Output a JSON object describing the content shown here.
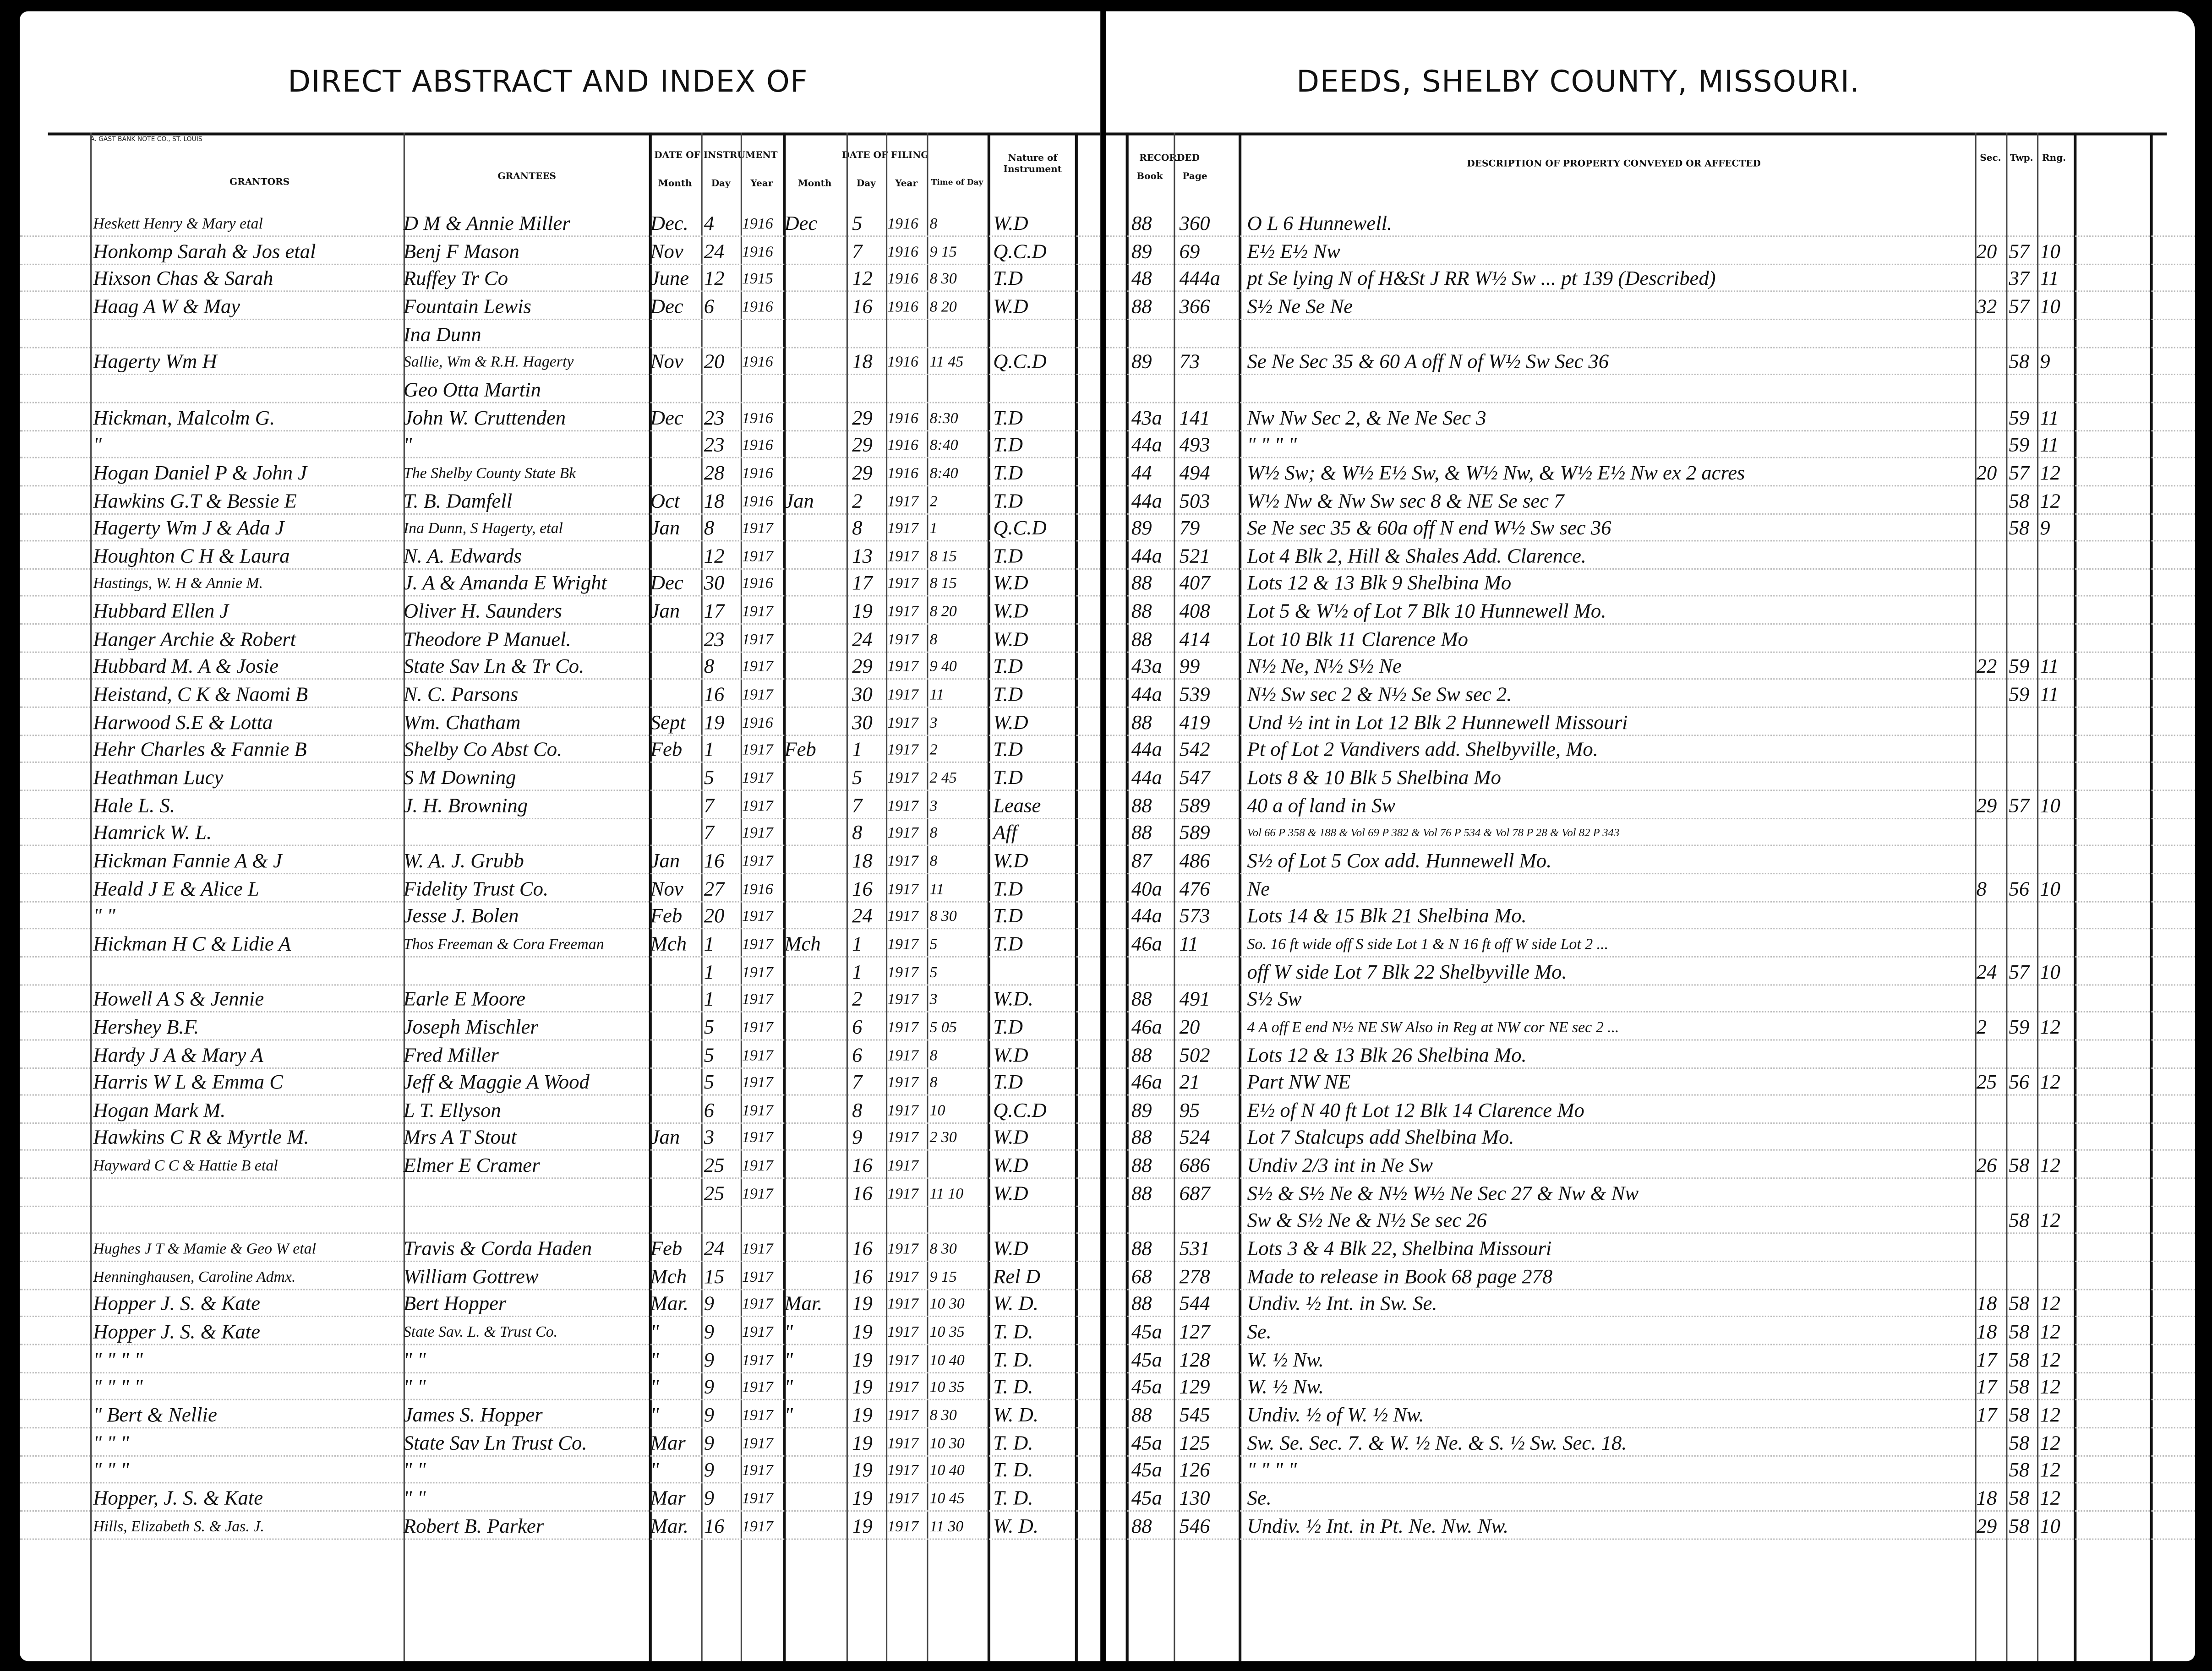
{
  "left_page": {
    "title": "DIRECT ABSTRACT AND INDEX OF",
    "imprint": "A. GAST BANK NOTE CO., ST. LOUIS",
    "headers": {
      "grantors": "GRANTORS",
      "grantees": "GRANTEES",
      "date_of_instrument": "DATE OF INSTRUMENT",
      "date_of_filing": "DATE OF FILING",
      "month": "Month",
      "day": "Day",
      "year": "Year",
      "time_of_day": "Time of Day",
      "nature": "Nature of Instrument"
    }
  },
  "right_page": {
    "title": "DEEDS, SHELBY COUNTY, MISSOURI.",
    "headers": {
      "recorded": "RECORDED",
      "book": "Book",
      "page": "Page",
      "description": "DESCRIPTION OF PROPERTY CONVEYED OR AFFECTED",
      "sec": "Sec.",
      "twp": "Twp.",
      "rng": "Rng."
    }
  },
  "rows": [
    {
      "grantor": "Heskett Henry & Mary etal",
      "grantee": "D M & Annie Miller",
      "im": "Dec.",
      "id": "4",
      "iy": "1916",
      "fm": "Dec",
      "fd": "5",
      "fy": "1916",
      "time": "8",
      "nature": "W.D",
      "book": "88",
      "page": "360",
      "desc": "O L 6 Hunnewell.",
      "sec": "",
      "twp": "",
      "rng": ""
    },
    {
      "grantor": "Honkomp Sarah & Jos etal",
      "grantee": "Benj F Mason",
      "im": "Nov",
      "id": "24",
      "iy": "1916",
      "fm": "",
      "fd": "7",
      "fy": "1916",
      "time": "9 15",
      "nature": "Q.C.D",
      "book": "89",
      "page": "69",
      "desc": "E½ E½ Nw",
      "sec": "20",
      "twp": "57",
      "rng": "10"
    },
    {
      "grantor": "Hixson Chas & Sarah",
      "grantee": "Ruffey Tr Co",
      "im": "June",
      "id": "12",
      "iy": "1915",
      "fm": "",
      "fd": "12",
      "fy": "1916",
      "time": "8 30",
      "nature": "T.D",
      "book": "48",
      "page": "444a",
      "desc": "pt Se lying N of H&St J RR W½ Sw ... pt 139 (Described)",
      "sec": "",
      "twp": "37",
      "rng": "11"
    },
    {
      "grantor": "Haag A W & May",
      "grantee": "Fountain Lewis",
      "im": "Dec",
      "id": "6",
      "iy": "1916",
      "fm": "",
      "fd": "16",
      "fy": "1916",
      "time": "8 20",
      "nature": "W.D",
      "book": "88",
      "page": "366",
      "desc": "S½ Ne Se Ne",
      "sec": "32",
      "twp": "57",
      "rng": "10"
    },
    {
      "grantor": "",
      "grantee": "Ina Dunn",
      "im": "",
      "id": "",
      "iy": "",
      "fm": "",
      "fd": "",
      "fy": "",
      "time": "",
      "nature": "",
      "book": "",
      "page": "",
      "desc": "",
      "sec": "",
      "twp": "",
      "rng": ""
    },
    {
      "grantor": "Hagerty Wm H",
      "grantee": "Sallie, Wm & R.H. Hagerty",
      "im": "Nov",
      "id": "20",
      "iy": "1916",
      "fm": "",
      "fd": "18",
      "fy": "1916",
      "time": "11 45",
      "nature": "Q.C.D",
      "book": "89",
      "page": "73",
      "desc": "Se Ne Sec 35 & 60 A off N of W½ Sw Sec 36",
      "sec": "",
      "twp": "58",
      "rng": "9"
    },
    {
      "grantor": "",
      "grantee": "Geo Otta Martin",
      "im": "",
      "id": "",
      "iy": "",
      "fm": "",
      "fd": "",
      "fy": "",
      "time": "",
      "nature": "",
      "book": "",
      "page": "",
      "desc": "",
      "sec": "",
      "twp": "",
      "rng": ""
    },
    {
      "grantor": "Hickman, Malcolm G.",
      "grantee": "John W. Cruttenden",
      "im": "Dec",
      "id": "23",
      "iy": "1916",
      "fm": "",
      "fd": "29",
      "fy": "1916",
      "time": "8:30",
      "nature": "T.D",
      "book": "43a",
      "page": "141",
      "desc": "Nw Nw Sec 2, & Ne Ne Sec 3",
      "sec": "",
      "twp": "59",
      "rng": "11"
    },
    {
      "grantor": "\"",
      "grantee": "\"",
      "im": "",
      "id": "23",
      "iy": "1916",
      "fm": "",
      "fd": "29",
      "fy": "1916",
      "time": "8:40",
      "nature": "T.D",
      "book": "44a",
      "page": "493",
      "desc": "\" \" \" \"",
      "sec": "",
      "twp": "59",
      "rng": "11"
    },
    {
      "grantor": "Hogan Daniel P & John J",
      "grantee": "The Shelby County State Bk",
      "im": "",
      "id": "28",
      "iy": "1916",
      "fm": "",
      "fd": "29",
      "fy": "1916",
      "time": "8:40",
      "nature": "T.D",
      "book": "44",
      "page": "494",
      "desc": "W½ Sw; & W½ E½ Sw, & W½ Nw, & W½ E½ Nw ex 2 acres",
      "sec": "20",
      "twp": "57",
      "rng": "12"
    },
    {
      "grantor": "Hawkins G.T & Bessie E",
      "grantee": "T. B. Damfell",
      "im": "Oct",
      "id": "18",
      "iy": "1916",
      "fm": "Jan",
      "fd": "2",
      "fy": "1917",
      "time": "2",
      "nature": "T.D",
      "book": "44a",
      "page": "503",
      "desc": "W½ Nw & Nw Sw sec 8 & NE Se sec 7",
      "sec": "",
      "twp": "58",
      "rng": "12"
    },
    {
      "grantor": "Hagerty Wm J & Ada J",
      "grantee": "Ina Dunn, S Hagerty, etal",
      "im": "Jan",
      "id": "8",
      "iy": "1917",
      "fm": "",
      "fd": "8",
      "fy": "1917",
      "time": "1",
      "nature": "Q.C.D",
      "book": "89",
      "page": "79",
      "desc": "Se Ne sec 35 & 60a off N end W½ Sw sec 36",
      "sec": "",
      "twp": "58",
      "rng": "9"
    },
    {
      "grantor": "Houghton C H & Laura",
      "grantee": "N. A. Edwards",
      "im": "",
      "id": "12",
      "iy": "1917",
      "fm": "",
      "fd": "13",
      "fy": "1917",
      "time": "8 15",
      "nature": "T.D",
      "book": "44a",
      "page": "521",
      "desc": "Lot 4 Blk 2, Hill & Shales Add. Clarence.",
      "sec": "",
      "twp": "",
      "rng": ""
    },
    {
      "grantor": "Hastings, W. H & Annie M.",
      "grantee": "J. A & Amanda E Wright",
      "im": "Dec",
      "id": "30",
      "iy": "1916",
      "fm": "",
      "fd": "17",
      "fy": "1917",
      "time": "8 15",
      "nature": "W.D",
      "book": "88",
      "page": "407",
      "desc": "Lots 12 & 13 Blk 9 Shelbina Mo",
      "sec": "",
      "twp": "",
      "rng": ""
    },
    {
      "grantor": "Hubbard Ellen J",
      "grantee": "Oliver H. Saunders",
      "im": "Jan",
      "id": "17",
      "iy": "1917",
      "fm": "",
      "fd": "19",
      "fy": "1917",
      "time": "8 20",
      "nature": "W.D",
      "book": "88",
      "page": "408",
      "desc": "Lot 5 & W½ of Lot 7 Blk 10 Hunnewell Mo.",
      "sec": "",
      "twp": "",
      "rng": ""
    },
    {
      "grantor": "Hanger Archie & Robert",
      "grantee": "Theodore P Manuel.",
      "im": "",
      "id": "23",
      "iy": "1917",
      "fm": "",
      "fd": "24",
      "fy": "1917",
      "time": "8",
      "nature": "W.D",
      "book": "88",
      "page": "414",
      "desc": "Lot 10 Blk 11 Clarence Mo",
      "sec": "",
      "twp": "",
      "rng": ""
    },
    {
      "grantor": "Hubbard M. A & Josie",
      "grantee": "State Sav Ln & Tr Co.",
      "im": "",
      "id": "8",
      "iy": "1917",
      "fm": "",
      "fd": "29",
      "fy": "1917",
      "time": "9 40",
      "nature": "T.D",
      "book": "43a",
      "page": "99",
      "desc": "N½ Ne, N½ S½ Ne",
      "sec": "22",
      "twp": "59",
      "rng": "11"
    },
    {
      "grantor": "Heistand, C K & Naomi B",
      "grantee": "N. C. Parsons",
      "im": "",
      "id": "16",
      "iy": "1917",
      "fm": "",
      "fd": "30",
      "fy": "1917",
      "time": "11",
      "nature": "T.D",
      "book": "44a",
      "page": "539",
      "desc": "N½ Sw sec 2 & N½ Se Sw sec 2.",
      "sec": "",
      "twp": "59",
      "rng": "11"
    },
    {
      "grantor": "Harwood S.E & Lotta",
      "grantee": "Wm. Chatham",
      "im": "Sept",
      "id": "19",
      "iy": "1916",
      "fm": "",
      "fd": "30",
      "fy": "1917",
      "time": "3",
      "nature": "W.D",
      "book": "88",
      "page": "419",
      "desc": "Und ½ int in Lot 12 Blk 2 Hunnewell Missouri",
      "sec": "",
      "twp": "",
      "rng": ""
    },
    {
      "grantor": "Hehr Charles & Fannie B",
      "grantee": "Shelby Co Abst Co.",
      "im": "Feb",
      "id": "1",
      "iy": "1917",
      "fm": "Feb",
      "fd": "1",
      "fy": "1917",
      "time": "2",
      "nature": "T.D",
      "book": "44a",
      "page": "542",
      "desc": "Pt of Lot 2 Vandivers add. Shelbyville, Mo.",
      "sec": "",
      "twp": "",
      "rng": ""
    },
    {
      "grantor": "Heathman Lucy",
      "grantee": "S M Downing",
      "im": "",
      "id": "5",
      "iy": "1917",
      "fm": "",
      "fd": "5",
      "fy": "1917",
      "time": "2 45",
      "nature": "T.D",
      "book": "44a",
      "page": "547",
      "desc": "Lots 8 & 10 Blk 5 Shelbina Mo",
      "sec": "",
      "twp": "",
      "rng": ""
    },
    {
      "grantor": "Hale L. S.",
      "grantee": "J. H. Browning",
      "im": "",
      "id": "7",
      "iy": "1917",
      "fm": "",
      "fd": "7",
      "fy": "1917",
      "time": "3",
      "nature": "Lease",
      "book": "88",
      "page": "589",
      "desc": "40 a of land in Sw",
      "sec": "29",
      "twp": "57",
      "rng": "10"
    },
    {
      "grantor": "Hamrick W. L.",
      "grantee": "",
      "im": "",
      "id": "7",
      "iy": "1917",
      "fm": "",
      "fd": "8",
      "fy": "1917",
      "time": "8",
      "nature": "Aff",
      "book": "88",
      "page": "589",
      "desc": "Vol 66 P 358 & 188 & Vol 69 P 382 & Vol 76 P 534 & Vol 78 P 28 & Vol 82 P 343",
      "sec": "",
      "twp": "",
      "rng": ""
    },
    {
      "grantor": "Hickman Fannie A & J",
      "grantee": "W. A. J. Grubb",
      "im": "Jan",
      "id": "16",
      "iy": "1917",
      "fm": "",
      "fd": "18",
      "fy": "1917",
      "time": "8",
      "nature": "W.D",
      "book": "87",
      "page": "486",
      "desc": "S½ of Lot 5 Cox add. Hunnewell Mo.",
      "sec": "",
      "twp": "",
      "rng": ""
    },
    {
      "grantor": "Heald J E & Alice L",
      "grantee": "Fidelity Trust Co.",
      "im": "Nov",
      "id": "27",
      "iy": "1916",
      "fm": "",
      "fd": "16",
      "fy": "1917",
      "time": "11",
      "nature": "T.D",
      "book": "40a",
      "page": "476",
      "desc": "Ne",
      "sec": "8",
      "twp": "56",
      "rng": "10"
    },
    {
      "grantor": "\" \"",
      "grantee": "Jesse J. Bolen",
      "im": "Feb",
      "id": "20",
      "iy": "1917",
      "fm": "",
      "fd": "24",
      "fy": "1917",
      "time": "8 30",
      "nature": "T.D",
      "book": "44a",
      "page": "573",
      "desc": "Lots 14 & 15 Blk 21 Shelbina Mo.",
      "sec": "",
      "twp": "",
      "rng": ""
    },
    {
      "grantor": "Hickman H C & Lidie A",
      "grantee": "Thos Freeman & Cora Freeman",
      "im": "Mch",
      "id": "1",
      "iy": "1917",
      "fm": "Mch",
      "fd": "1",
      "fy": "1917",
      "time": "5",
      "nature": "T.D",
      "book": "46a",
      "page": "11",
      "desc": "So. 16 ft wide off S side Lot 1 & N 16 ft off W side Lot 2 ...",
      "sec": "",
      "twp": "",
      "rng": ""
    },
    {
      "grantor": "",
      "grantee": "",
      "im": "",
      "id": "1",
      "iy": "1917",
      "fm": "",
      "fd": "1",
      "fy": "1917",
      "time": "5",
      "nature": "",
      "book": "",
      "page": "",
      "desc": "off W side Lot 7 Blk 22 Shelbyville Mo.",
      "sec": "24",
      "twp": "57",
      "rng": "10"
    },
    {
      "grantor": "Howell A S & Jennie",
      "grantee": "Earle E Moore",
      "im": "",
      "id": "1",
      "iy": "1917",
      "fm": "",
      "fd": "2",
      "fy": "1917",
      "time": "3",
      "nature": "W.D.",
      "book": "88",
      "page": "491",
      "desc": "S½ Sw",
      "sec": "",
      "twp": "",
      "rng": ""
    },
    {
      "grantor": "Hershey B.F.",
      "grantee": "Joseph Mischler",
      "im": "",
      "id": "5",
      "iy": "1917",
      "fm": "",
      "fd": "6",
      "fy": "1917",
      "time": "5 05",
      "nature": "T.D",
      "book": "46a",
      "page": "20",
      "desc": "4 A off E end N½ NE SW Also in Reg at NW cor NE sec 2 ...",
      "sec": "2",
      "twp": "59",
      "rng": "12"
    },
    {
      "grantor": "Hardy J A & Mary A",
      "grantee": "Fred Miller",
      "im": "",
      "id": "5",
      "iy": "1917",
      "fm": "",
      "fd": "6",
      "fy": "1917",
      "time": "8",
      "nature": "W.D",
      "book": "88",
      "page": "502",
      "desc": "Lots 12 & 13 Blk 26 Shelbina Mo.",
      "sec": "",
      "twp": "",
      "rng": ""
    },
    {
      "grantor": "Harris W L & Emma C",
      "grantee": "Jeff & Maggie A Wood",
      "im": "",
      "id": "5",
      "iy": "1917",
      "fm": "",
      "fd": "7",
      "fy": "1917",
      "time": "8",
      "nature": "T.D",
      "book": "46a",
      "page": "21",
      "desc": "Part NW NE",
      "sec": "25",
      "twp": "56",
      "rng": "12"
    },
    {
      "grantor": "Hogan Mark M.",
      "grantee": "L T. Ellyson",
      "im": "",
      "id": "6",
      "iy": "1917",
      "fm": "",
      "fd": "8",
      "fy": "1917",
      "time": "10",
      "nature": "Q.C.D",
      "book": "89",
      "page": "95",
      "desc": "E½ of N 40 ft Lot 12 Blk 14 Clarence Mo",
      "sec": "",
      "twp": "",
      "rng": ""
    },
    {
      "grantor": "Hawkins C R & Myrtle M.",
      "grantee": "Mrs A T Stout",
      "im": "Jan",
      "id": "3",
      "iy": "1917",
      "fm": "",
      "fd": "9",
      "fy": "1917",
      "time": "2 30",
      "nature": "W.D",
      "book": "88",
      "page": "524",
      "desc": "Lot 7 Stalcups add Shelbina Mo.",
      "sec": "",
      "twp": "",
      "rng": ""
    },
    {
      "grantor": "Hayward C C & Hattie B etal",
      "grantee": "Elmer E Cramer",
      "im": "",
      "id": "25",
      "iy": "1917",
      "fm": "",
      "fd": "16",
      "fy": "1917",
      "time": "",
      "nature": "W.D",
      "book": "88",
      "page": "686",
      "desc": "Undiv 2/3 int in Ne Sw",
      "sec": "26",
      "twp": "58",
      "rng": "12"
    },
    {
      "grantor": "",
      "grantee": "",
      "im": "",
      "id": "25",
      "iy": "1917",
      "fm": "",
      "fd": "16",
      "fy": "1917",
      "time": "11 10",
      "nature": "W.D",
      "book": "88",
      "page": "687",
      "desc": "S½ & S½ Ne & N½ W½ Ne Sec 27 & Nw & Nw",
      "sec": "",
      "twp": "",
      "rng": ""
    },
    {
      "grantor": "",
      "grantee": "",
      "im": "",
      "id": "",
      "iy": "",
      "fm": "",
      "fd": "",
      "fy": "",
      "time": "",
      "nature": "",
      "book": "",
      "page": "",
      "desc": "Sw & S½ Ne & N½ Se sec 26",
      "sec": "",
      "twp": "58",
      "rng": "12"
    },
    {
      "grantor": "Hughes J T & Mamie & Geo W etal",
      "grantee": "Travis & Corda Haden",
      "im": "Feb",
      "id": "24",
      "iy": "1917",
      "fm": "",
      "fd": "16",
      "fy": "1917",
      "time": "8 30",
      "nature": "W.D",
      "book": "88",
      "page": "531",
      "desc": "Lots 3 & 4 Blk 22, Shelbina Missouri",
      "sec": "",
      "twp": "",
      "rng": ""
    },
    {
      "grantor": "Henninghausen, Caroline Admx.",
      "grantee": "William Gottrew",
      "im": "Mch",
      "id": "15",
      "iy": "1917",
      "fm": "",
      "fd": "16",
      "fy": "1917",
      "time": "9 15",
      "nature": "Rel D",
      "book": "68",
      "page": "278",
      "desc": "Made to release in Book 68 page 278",
      "sec": "",
      "twp": "",
      "rng": ""
    },
    {
      "grantor": "Hopper J. S. & Kate",
      "grantee": "Bert Hopper",
      "im": "Mar.",
      "id": "9",
      "iy": "1917",
      "fm": "Mar.",
      "fd": "19",
      "fy": "1917",
      "time": "10 30",
      "nature": "W. D.",
      "book": "88",
      "page": "544",
      "desc": "Undiv. ½ Int. in Sw. Se.",
      "sec": "18",
      "twp": "58",
      "rng": "12"
    },
    {
      "grantor": "Hopper J. S. & Kate",
      "grantee": "State Sav. L. & Trust Co.",
      "im": "\"",
      "id": "9",
      "iy": "1917",
      "fm": "\"",
      "fd": "19",
      "fy": "1917",
      "time": "10 35",
      "nature": "T. D.",
      "book": "45a",
      "page": "127",
      "desc": "Se.",
      "sec": "18",
      "twp": "58",
      "rng": "12"
    },
    {
      "grantor": "\" \" \" \"",
      "grantee": "\" \"",
      "im": "\"",
      "id": "9",
      "iy": "1917",
      "fm": "\"",
      "fd": "19",
      "fy": "1917",
      "time": "10 40",
      "nature": "T. D.",
      "book": "45a",
      "page": "128",
      "desc": "W. ½ Nw.",
      "sec": "17",
      "twp": "58",
      "rng": "12"
    },
    {
      "grantor": "\" \" \" \"",
      "grantee": "\" \"",
      "im": "\"",
      "id": "9",
      "iy": "1917",
      "fm": "\"",
      "fd": "19",
      "fy": "1917",
      "time": "10 35",
      "nature": "T. D.",
      "book": "45a",
      "page": "129",
      "desc": "W. ½ Nw.",
      "sec": "17",
      "twp": "58",
      "rng": "12"
    },
    {
      "grantor": "\" Bert & Nellie",
      "grantee": "James S. Hopper",
      "im": "\"",
      "id": "9",
      "iy": "1917",
      "fm": "\"",
      "fd": "19",
      "fy": "1917",
      "time": "8 30",
      "nature": "W. D.",
      "book": "88",
      "page": "545",
      "desc": "Undiv. ½ of W. ½ Nw.",
      "sec": "17",
      "twp": "58",
      "rng": "12"
    },
    {
      "grantor": "\" \" \"",
      "grantee": "State Sav Ln Trust Co.",
      "im": "Mar",
      "id": "9",
      "iy": "1917",
      "fm": "",
      "fd": "19",
      "fy": "1917",
      "time": "10 30",
      "nature": "T. D.",
      "book": "45a",
      "page": "125",
      "desc": "Sw. Se. Sec. 7. & W. ½ Ne. & S. ½ Sw. Sec. 18.",
      "sec": "",
      "twp": "58",
      "rng": "12"
    },
    {
      "grantor": "\" \" \"",
      "grantee": "\" \"",
      "im": "\"",
      "id": "9",
      "iy": "1917",
      "fm": "",
      "fd": "19",
      "fy": "1917",
      "time": "10 40",
      "nature": "T. D.",
      "book": "45a",
      "page": "126",
      "desc": "\" \" \" \"",
      "sec": "",
      "twp": "58",
      "rng": "12"
    },
    {
      "grantor": "Hopper, J. S. & Kate",
      "grantee": "\" \"",
      "im": "Mar",
      "id": "9",
      "iy": "1917",
      "fm": "",
      "fd": "19",
      "fy": "1917",
      "time": "10 45",
      "nature": "T. D.",
      "book": "45a",
      "page": "130",
      "desc": "Se.",
      "sec": "18",
      "twp": "58",
      "rng": "12"
    },
    {
      "grantor": "Hills, Elizabeth S. & Jas. J.",
      "grantee": "Robert B. Parker",
      "im": "Mar.",
      "id": "16",
      "iy": "1917",
      "fm": "",
      "fd": "19",
      "fy": "1917",
      "time": "11 30",
      "nature": "W. D.",
      "book": "88",
      "page": "546",
      "desc": "Undiv. ½ Int. in Pt. Ne. Nw. Nw.",
      "sec": "29",
      "twp": "58",
      "rng": "10"
    }
  ]
}
